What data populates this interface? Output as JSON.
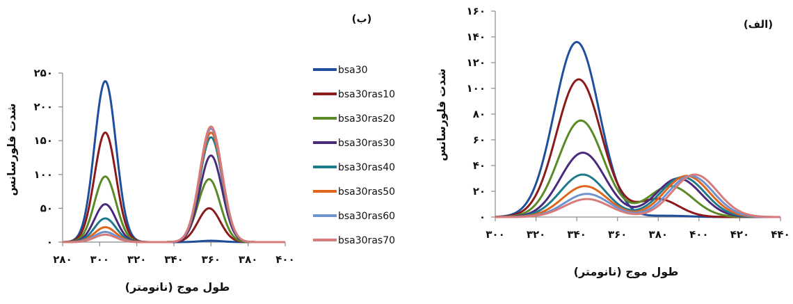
{
  "chart_data": [
    {
      "type": "line",
      "panel_label": "(ب)",
      "xlabel": "طول موج (نانومتر)",
      "ylabel": "شدت فلورسانس",
      "xlim": [
        280,
        400
      ],
      "ylim": [
        0,
        250
      ],
      "x_ticks": [
        280,
        300,
        320,
        340,
        360,
        380,
        400
      ],
      "x_tick_labels": [
        "۲۸۰",
        "۳۰۰",
        "۳۲۰",
        "۳۴۰",
        "۳۶۰",
        "۳۸۰",
        "۴۰۰"
      ],
      "y_ticks": [
        0,
        50,
        100,
        150,
        200,
        250
      ],
      "y_tick_labels": [
        "۰",
        "۵۰",
        "۱۰۰",
        "۱۵۰",
        "۲۰۰",
        "۲۵۰"
      ],
      "grid": false,
      "legend_position": "right",
      "series": [
        {
          "name": "bsa30",
          "color": "#1f4e9c",
          "peaks": [
            {
              "center": 303,
              "height": 238,
              "width": 5.8
            },
            {
              "center": 360,
              "height": 2,
              "width": 6
            }
          ]
        },
        {
          "name": "bsa30ras10",
          "color": "#8b1a1a",
          "peaks": [
            {
              "center": 303,
              "height": 162,
              "width": 5.8
            },
            {
              "center": 359,
              "height": 50,
              "width": 6
            }
          ]
        },
        {
          "name": "bsa30ras20",
          "color": "#5a8a26",
          "peaks": [
            {
              "center": 303,
              "height": 97,
              "width": 5.8
            },
            {
              "center": 359,
              "height": 93,
              "width": 6
            }
          ]
        },
        {
          "name": "bsa30ras30",
          "color": "#4a2a7a",
          "peaks": [
            {
              "center": 303,
              "height": 56,
              "width": 5.8
            },
            {
              "center": 360,
              "height": 128,
              "width": 6
            }
          ]
        },
        {
          "name": "bsa30ras40",
          "color": "#1f7a8c",
          "peaks": [
            {
              "center": 303,
              "height": 35,
              "width": 5.8
            },
            {
              "center": 360,
              "height": 155,
              "width": 6
            }
          ]
        },
        {
          "name": "bsa30ras50",
          "color": "#e0661e",
          "peaks": [
            {
              "center": 303,
              "height": 22,
              "width": 5.8
            },
            {
              "center": 360,
              "height": 162,
              "width": 6
            }
          ]
        },
        {
          "name": "bsa30ras60",
          "color": "#6f93cf",
          "peaks": [
            {
              "center": 303,
              "height": 15,
              "width": 5.8
            },
            {
              "center": 360,
              "height": 168,
              "width": 6
            }
          ]
        },
        {
          "name": "bsa30ras70",
          "color": "#d77a7a",
          "peaks": [
            {
              "center": 303,
              "height": 11,
              "width": 5.8
            },
            {
              "center": 360,
              "height": 171,
              "width": 6
            }
          ]
        }
      ]
    },
    {
      "type": "line",
      "panel_label": "(الف)",
      "xlabel": "طول موج (نانومتر)",
      "ylabel": "شدت فلورسانس",
      "xlim": [
        300,
        440
      ],
      "ylim": [
        0,
        160
      ],
      "x_ticks": [
        300,
        320,
        340,
        360,
        380,
        400,
        420,
        440
      ],
      "x_tick_labels": [
        "۳۰۰",
        "۳۲۰",
        "۳۴۰",
        "۳۶۰",
        "۳۸۰",
        "۴۰۰",
        "۴۲۰",
        "۴۴۰"
      ],
      "y_ticks": [
        0,
        20,
        40,
        60,
        80,
        100,
        120,
        140,
        160
      ],
      "y_tick_labels": [
        "۰",
        "۲۰",
        "۴۰",
        "۶۰",
        "۸۰",
        "۱۰۰",
        "۱۲۰",
        "۱۴۰",
        "۱۶۰"
      ],
      "grid": false,
      "series": [
        {
          "name": "bsa30",
          "color": "#1f4e9c",
          "peaks": [
            {
              "center": 340,
              "height": 136,
              "width": 11
            },
            {
              "center": 385,
              "height": 1,
              "width": 10
            }
          ]
        },
        {
          "name": "bsa30ras10",
          "color": "#8b1a1a",
          "peaks": [
            {
              "center": 341,
              "height": 107,
              "width": 11
            },
            {
              "center": 380,
              "height": 14,
              "width": 10
            }
          ]
        },
        {
          "name": "bsa30ras20",
          "color": "#5a8a26",
          "peaks": [
            {
              "center": 342,
              "height": 75,
              "width": 11
            },
            {
              "center": 386,
              "height": 24,
              "width": 11
            }
          ]
        },
        {
          "name": "bsa30ras30",
          "color": "#4a2a7a",
          "peaks": [
            {
              "center": 343,
              "height": 50,
              "width": 11
            },
            {
              "center": 390,
              "height": 30,
              "width": 11
            }
          ]
        },
        {
          "name": "bsa30ras40",
          "color": "#1f7a8c",
          "peaks": [
            {
              "center": 343,
              "height": 33,
              "width": 11
            },
            {
              "center": 392,
              "height": 31,
              "width": 11
            }
          ]
        },
        {
          "name": "bsa30ras50",
          "color": "#e0661e",
          "peaks": [
            {
              "center": 344,
              "height": 24,
              "width": 11
            },
            {
              "center": 394,
              "height": 32,
              "width": 11
            }
          ]
        },
        {
          "name": "bsa30ras60",
          "color": "#6f93cf",
          "peaks": [
            {
              "center": 345,
              "height": 18,
              "width": 11
            },
            {
              "center": 396,
              "height": 32,
              "width": 11
            }
          ]
        },
        {
          "name": "bsa30ras70",
          "color": "#d77a7a",
          "peaks": [
            {
              "center": 345,
              "height": 14,
              "width": 11
            },
            {
              "center": 398,
              "height": 33,
              "width": 11
            }
          ]
        }
      ]
    }
  ]
}
